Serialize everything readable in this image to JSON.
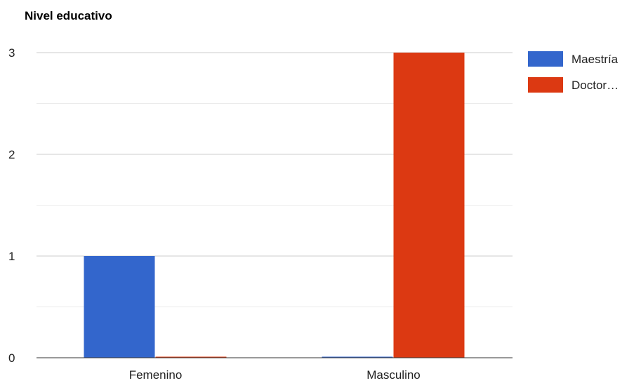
{
  "chart_data": {
    "type": "bar",
    "title": "Nivel educativo",
    "xlabel": "",
    "ylabel": "",
    "categories": [
      "Femenino",
      "Masculino"
    ],
    "series": [
      {
        "name": "Maestría",
        "values": [
          1,
          0
        ],
        "color": "#3366cc"
      },
      {
        "name": "Doctor…",
        "values": [
          0,
          3
        ],
        "color": "#dc3912"
      }
    ],
    "ylim": [
      0,
      3
    ],
    "y_ticks": [
      "0",
      "1",
      "2",
      "3"
    ],
    "grid": true,
    "legend_position": "right"
  }
}
